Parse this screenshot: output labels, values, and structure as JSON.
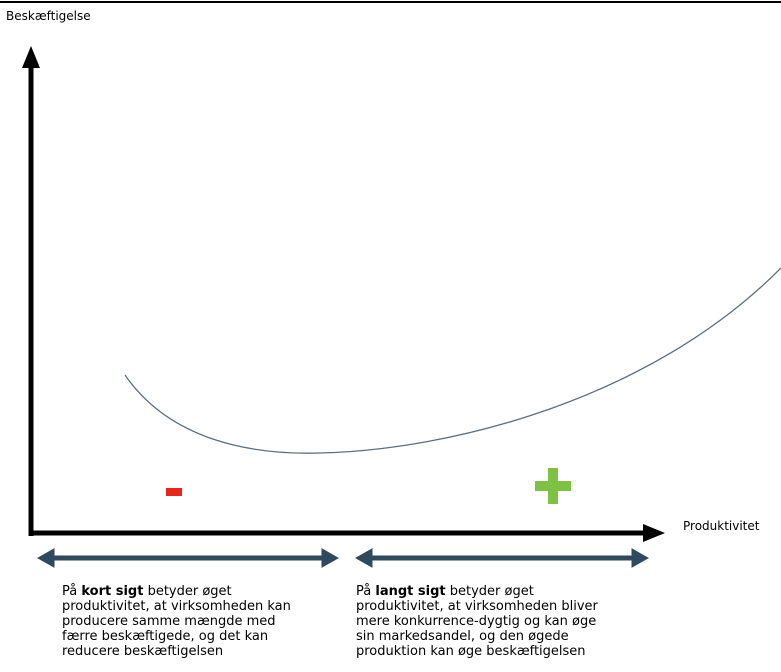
{
  "y_axis_label": "Beskæftigelse",
  "x_axis_label": "Produktivitet",
  "notes": [
    {
      "lead": "På ",
      "emphasis": "kort sigt",
      "lines": [
        " betyder øget",
        "produktivitet, at virksomheden kan",
        "producere samme mængde med",
        "færre beskæftigede, og det kan",
        "reducere beskæftigelsen"
      ]
    },
    {
      "lead": "På ",
      "emphasis": "langt sigt",
      "lines": [
        " betyder øget",
        "produktivitet, at virksomheden bliver",
        "mere konkurrence-dygtig og kan øge",
        "sin markedsandel, og den øgede",
        "produktion kan øge beskæftigelsen"
      ]
    }
  ]
}
